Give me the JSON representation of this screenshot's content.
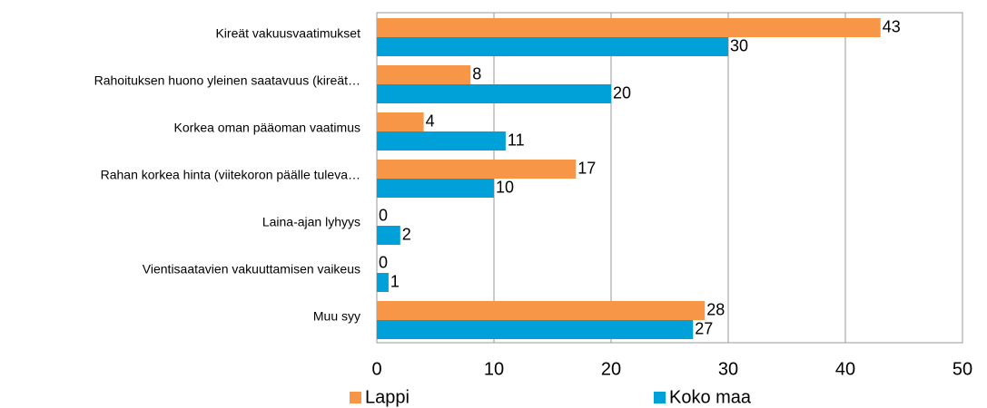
{
  "chart_data": {
    "type": "hbar",
    "categories": [
      "Kireät vakuusvaatimukset",
      "Rahoituksen huono yleinen saatavuus (kireät…",
      "Korkea oman pääoman vaatimus",
      "Rahan korkea hinta (viitekoron päälle tuleva…",
      "Laina-ajan lyhyys",
      "Vientisaatavien vakuuttamisen vaikeus",
      "Muu syy"
    ],
    "series": [
      {
        "name": "Lappi",
        "color": "#f79646",
        "values": [
          43,
          8,
          4,
          17,
          0,
          0,
          28
        ]
      },
      {
        "name": "Koko maa",
        "color": "#00a0d8",
        "values": [
          30,
          20,
          11,
          10,
          2,
          1,
          27
        ]
      }
    ],
    "xlim": [
      0,
      50
    ],
    "xticks": [
      0,
      10,
      20,
      30,
      40,
      50
    ],
    "grid": true,
    "legend": "bottom"
  }
}
